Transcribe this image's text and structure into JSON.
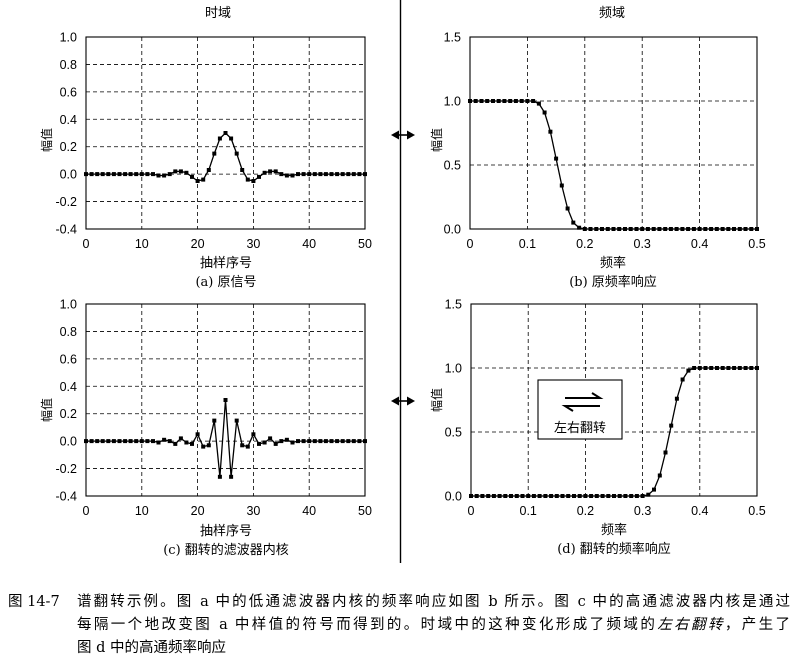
{
  "panel_headers": {
    "time_domain": "时域",
    "frequency_domain": "频域"
  },
  "chart_data": [
    {
      "type": "line",
      "title": "(a) 原信号",
      "xlabel": "抽样序号",
      "ylabel": "幅值",
      "xlim": [
        0,
        50
      ],
      "ylim": [
        -0.4,
        1.0
      ],
      "xticks": [
        0,
        10,
        20,
        30,
        40,
        50
      ],
      "xtick_labels": [
        "0",
        "10",
        "20",
        "30",
        "40",
        "50"
      ],
      "yticks": [
        1.0,
        0.8,
        0.6,
        0.4,
        0.2,
        0.0,
        -0.2,
        -0.4
      ],
      "ytick_labels": [
        "1.0",
        "0.8",
        "0.6",
        "0.4",
        "0.2",
        "0.0",
        "-0.2",
        "-0.4"
      ],
      "grid": true,
      "marker": "square",
      "x": [
        0,
        1,
        2,
        3,
        4,
        5,
        6,
        7,
        8,
        9,
        10,
        11,
        12,
        13,
        14,
        15,
        16,
        17,
        18,
        19,
        20,
        21,
        22,
        23,
        24,
        25,
        26,
        27,
        28,
        29,
        30,
        31,
        32,
        33,
        34,
        35,
        36,
        37,
        38,
        39,
        40,
        41,
        42,
        43,
        44,
        45,
        46,
        47,
        48,
        49,
        50
      ],
      "y": [
        0,
        0,
        0,
        0,
        0,
        0,
        0,
        0,
        0,
        0,
        0,
        0,
        0,
        -0.01,
        -0.01,
        0,
        0.02,
        0.02,
        0.01,
        -0.02,
        -0.05,
        -0.04,
        0.03,
        0.15,
        0.26,
        0.3,
        0.26,
        0.15,
        0.03,
        -0.04,
        -0.05,
        -0.02,
        0.01,
        0.02,
        0.02,
        0,
        -0.01,
        -0.01,
        0,
        0,
        0,
        0,
        0,
        0,
        0,
        0,
        0,
        0,
        0,
        0,
        0
      ]
    },
    {
      "type": "line",
      "title": "(b) 原频率响应",
      "xlabel": "频率",
      "ylabel": "幅值",
      "xlim": [
        0,
        0.5
      ],
      "ylim": [
        0,
        1.5
      ],
      "xticks": [
        0,
        0.1,
        0.2,
        0.3,
        0.4,
        0.5
      ],
      "xtick_labels": [
        "0",
        "0.1",
        "0.2",
        "0.3",
        "0.4",
        "0.5"
      ],
      "yticks": [
        1.5,
        1.0,
        0.5,
        0.0
      ],
      "ytick_labels": [
        "1.5",
        "1.0",
        "0.5",
        "0.0"
      ],
      "grid": true,
      "marker": "square",
      "x": [
        0,
        0.01,
        0.02,
        0.03,
        0.04,
        0.05,
        0.06,
        0.07,
        0.08,
        0.09,
        0.1,
        0.11,
        0.12,
        0.13,
        0.14,
        0.15,
        0.16,
        0.17,
        0.18,
        0.19,
        0.2,
        0.21,
        0.22,
        0.23,
        0.24,
        0.25,
        0.26,
        0.27,
        0.28,
        0.29,
        0.3,
        0.31,
        0.32,
        0.33,
        0.34,
        0.35,
        0.36,
        0.37,
        0.38,
        0.39,
        0.4,
        0.41,
        0.42,
        0.43,
        0.44,
        0.45,
        0.46,
        0.47,
        0.48,
        0.49,
        0.5
      ],
      "y": [
        1,
        1,
        1,
        1,
        1,
        1,
        1,
        1,
        1,
        1,
        1,
        1,
        0.98,
        0.91,
        0.76,
        0.55,
        0.34,
        0.16,
        0.05,
        0.01,
        0,
        0,
        0,
        0,
        0,
        0,
        0,
        0,
        0,
        0,
        0,
        0,
        0,
        0,
        0,
        0,
        0,
        0,
        0,
        0,
        0,
        0,
        0,
        0,
        0,
        0,
        0,
        0,
        0,
        0,
        0
      ]
    },
    {
      "type": "line",
      "title": "(c) 翻转的滤波器内核",
      "xlabel": "抽样序号",
      "ylabel": "幅值",
      "xlim": [
        0,
        50
      ],
      "ylim": [
        -0.4,
        1.0
      ],
      "xticks": [
        0,
        10,
        20,
        30,
        40,
        50
      ],
      "xtick_labels": [
        "0",
        "10",
        "20",
        "30",
        "40",
        "50"
      ],
      "yticks": [
        1.0,
        0.8,
        0.6,
        0.4,
        0.2,
        0.0,
        -0.2,
        -0.4
      ],
      "ytick_labels": [
        "1.0",
        "0.8",
        "0.6",
        "0.4",
        "0.2",
        "0.0",
        "-0.2",
        "-0.4"
      ],
      "grid": true,
      "marker": "square",
      "x": [
        0,
        1,
        2,
        3,
        4,
        5,
        6,
        7,
        8,
        9,
        10,
        11,
        12,
        13,
        14,
        15,
        16,
        17,
        18,
        19,
        20,
        21,
        22,
        23,
        24,
        25,
        26,
        27,
        28,
        29,
        30,
        31,
        32,
        33,
        34,
        35,
        36,
        37,
        38,
        39,
        40,
        41,
        42,
        43,
        44,
        45,
        46,
        47,
        48,
        49,
        50
      ],
      "y": [
        0,
        0,
        0,
        0,
        0,
        0,
        0,
        0,
        0,
        0,
        0,
        0,
        0,
        -0.01,
        0.01,
        0,
        -0.02,
        0.02,
        -0.01,
        -0.02,
        0.05,
        -0.04,
        -0.03,
        0.15,
        -0.26,
        0.3,
        -0.26,
        0.15,
        -0.03,
        -0.04,
        0.05,
        -0.02,
        -0.01,
        0.02,
        -0.02,
        0,
        0.01,
        -0.01,
        0,
        0,
        0,
        0,
        0,
        0,
        0,
        0,
        0,
        0,
        0,
        0,
        0
      ]
    },
    {
      "type": "line",
      "title": "(d) 翻转的频率响应",
      "xlabel": "频率",
      "ylabel": "幅值",
      "xlim": [
        0,
        0.5
      ],
      "ylim": [
        0,
        1.5
      ],
      "xticks": [
        0,
        0.1,
        0.2,
        0.3,
        0.4,
        0.5
      ],
      "xtick_labels": [
        "0",
        "0.1",
        "0.2",
        "0.3",
        "0.4",
        "0.5"
      ],
      "yticks": [
        1.5,
        1.0,
        0.5,
        0.0
      ],
      "ytick_labels": [
        "1.5",
        "1.0",
        "0.5",
        "0.0"
      ],
      "grid": true,
      "marker": "square",
      "x": [
        0,
        0.01,
        0.02,
        0.03,
        0.04,
        0.05,
        0.06,
        0.07,
        0.08,
        0.09,
        0.1,
        0.11,
        0.12,
        0.13,
        0.14,
        0.15,
        0.16,
        0.17,
        0.18,
        0.19,
        0.2,
        0.21,
        0.22,
        0.23,
        0.24,
        0.25,
        0.26,
        0.27,
        0.28,
        0.29,
        0.3,
        0.31,
        0.32,
        0.33,
        0.34,
        0.35,
        0.36,
        0.37,
        0.38,
        0.39,
        0.4,
        0.41,
        0.42,
        0.43,
        0.44,
        0.45,
        0.46,
        0.47,
        0.48,
        0.49,
        0.5
      ],
      "y": [
        0,
        0,
        0,
        0,
        0,
        0,
        0,
        0,
        0,
        0,
        0,
        0,
        0,
        0,
        0,
        0,
        0,
        0,
        0,
        0,
        0,
        0,
        0,
        0,
        0,
        0,
        0,
        0,
        0,
        0,
        0,
        0.01,
        0.05,
        0.16,
        0.34,
        0.55,
        0.76,
        0.91,
        0.98,
        1,
        1,
        1,
        1,
        1,
        1,
        1,
        1,
        1,
        1,
        1,
        1
      ],
      "annotation": {
        "icon": "swap-arrows-icon",
        "label": "左右翻转"
      }
    }
  ],
  "domain_arrows": [
    {
      "icon": "double-arrow-icon"
    },
    {
      "icon": "double-arrow-icon"
    }
  ],
  "caption": {
    "figure_number": "图 14-7",
    "line1": "谱翻转示例。图 a 中的低通滤波器内核的频率响应如图 b 所示。图 c 中的高通滤波器内核是通过",
    "line2_before": "每隔一个地改变图 a 中样值的符号而得到的。时域中的这种变化形成了频域的",
    "line2_emphasis": "左右翻转",
    "line2_after": "，产生了",
    "line3": "图 d 中的高通频率响应"
  }
}
